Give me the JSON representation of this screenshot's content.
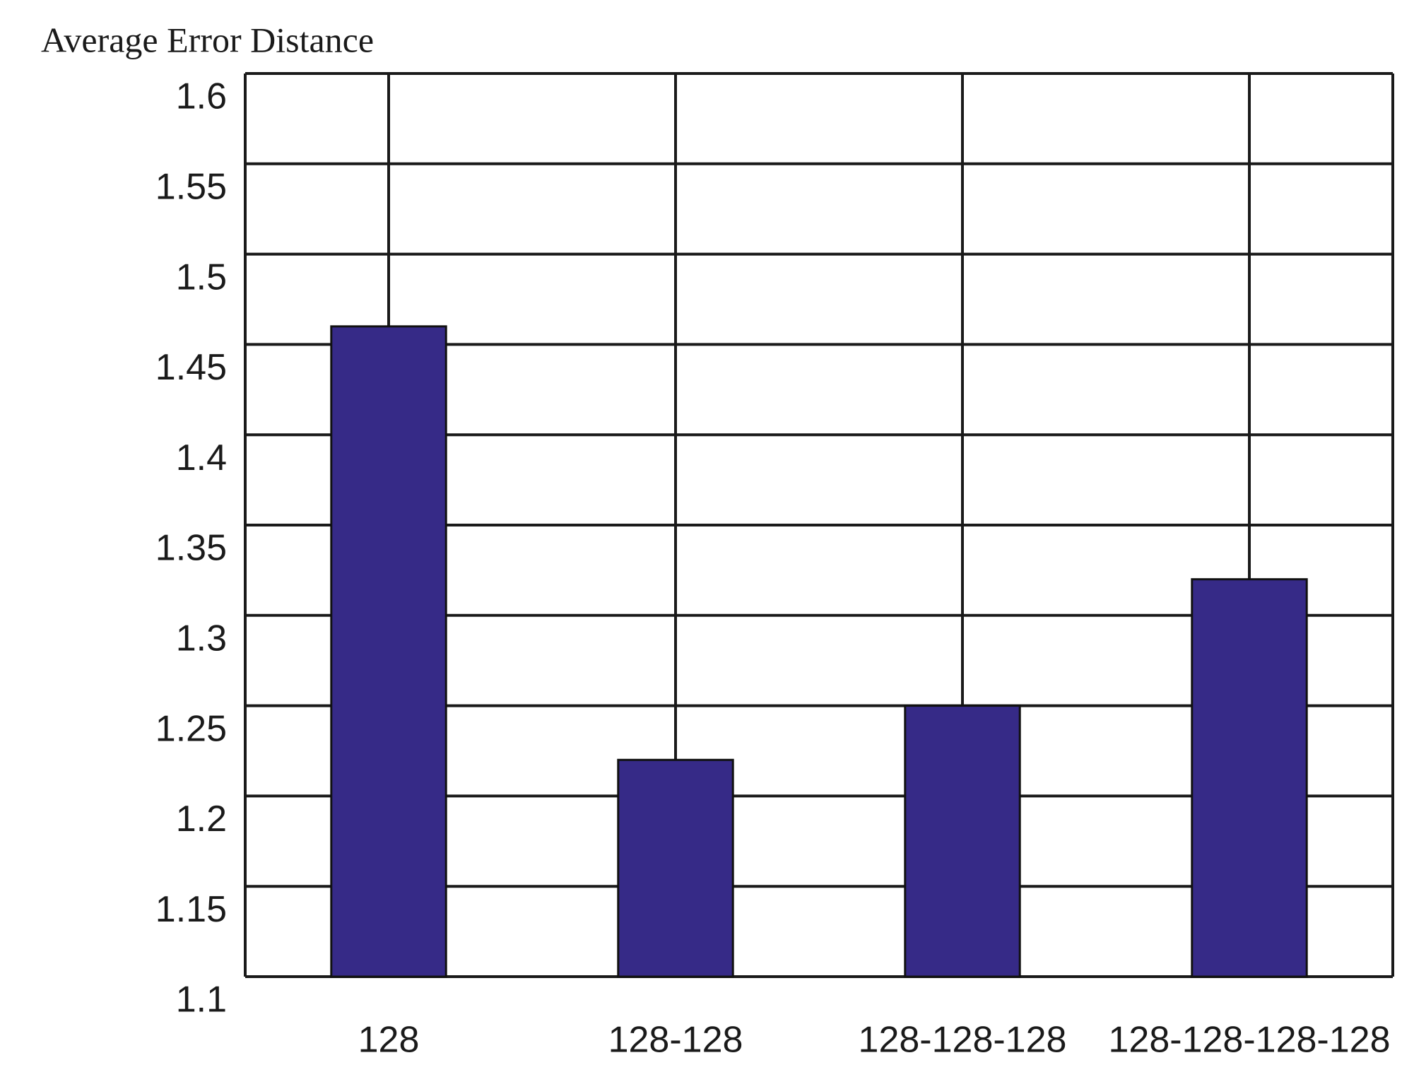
{
  "chart_data": {
    "type": "bar",
    "y_label": "Average Error Distance",
    "categories": [
      "128",
      "128-128",
      "128-128-128",
      "128-128-128-128"
    ],
    "values": [
      1.46,
      1.22,
      1.25,
      1.32
    ],
    "color": "#362a87",
    "ylim": [
      1.1,
      1.6
    ],
    "yticks": [
      1.1,
      1.15,
      1.2,
      1.25,
      1.3,
      1.35,
      1.4,
      1.45,
      1.5,
      1.55,
      1.6
    ],
    "grid": true
  }
}
